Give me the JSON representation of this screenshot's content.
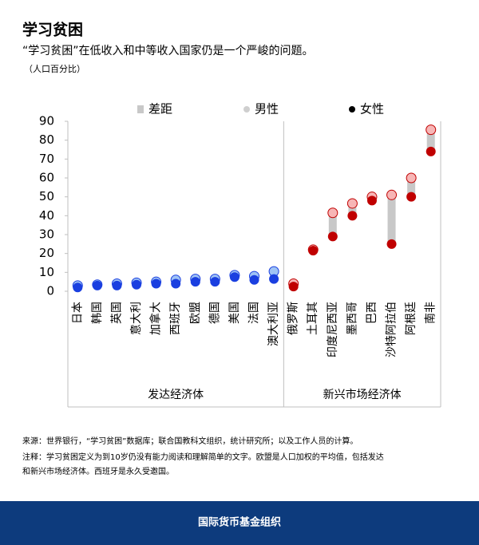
{
  "header": {
    "title": "学习贫困",
    "subtitle": "“学习贫困”在低收入和中等收入国家仍是一个严峻的问题。",
    "unit": "（人口百分比）"
  },
  "chart_data": {
    "type": "dumbbell",
    "legend": [
      {
        "name": "差距",
        "color": "#c8c8c8"
      },
      {
        "name": "男性",
        "color": "#cfcfcf"
      },
      {
        "name": "女性",
        "color": "#000000"
      }
    ],
    "ylim": [
      0,
      90
    ],
    "yticks": [
      0,
      10,
      20,
      30,
      40,
      50,
      60,
      70,
      80,
      90
    ],
    "gap_color": "#c8c8c8",
    "groups": [
      {
        "name": "发达经济体",
        "male_color": "#9fc3f5",
        "female_color": "#1a3fe0",
        "categories": [
          "日本",
          "韩国",
          "英国",
          "意大利",
          "加拿大",
          "西班牙",
          "欧盟",
          "德国",
          "美国",
          "法国",
          "澳大利亚"
        ],
        "male": [
          3,
          3.5,
          4,
          4.5,
          5,
          6,
          6.5,
          6.5,
          8.5,
          8,
          10.5
        ],
        "female": [
          2,
          3,
          3,
          3.5,
          4,
          4,
          5,
          5,
          7.5,
          6,
          6.5
        ]
      },
      {
        "name": "新兴市场经济体",
        "male_color": "#f7b6b6",
        "female_color": "#c00000",
        "categories": [
          "俄罗斯",
          "土耳其",
          "印度尼西亚",
          "墨西哥",
          "巴西",
          "沙特阿拉伯",
          "阿根廷",
          "南非"
        ],
        "male": [
          4,
          22,
          41.5,
          46.5,
          50,
          51,
          60,
          85.5
        ],
        "female": [
          2.5,
          21.5,
          29,
          40,
          48,
          25,
          50,
          74
        ]
      }
    ]
  },
  "notes": {
    "source": "来源：世界银行，“学习贫困”数据库；联合国教科文组织，统计研究所；以及工作人员的计算。",
    "note_1": "注释：学习贫困定义为到10岁仍没有能力阅读和理解简单的文字。欧盟是人口加权的平均值，包括发达",
    "note_2": "和新兴市场经济体。西班牙是永久受邀国。"
  },
  "footer": {
    "text": "国际货币基金组织"
  }
}
